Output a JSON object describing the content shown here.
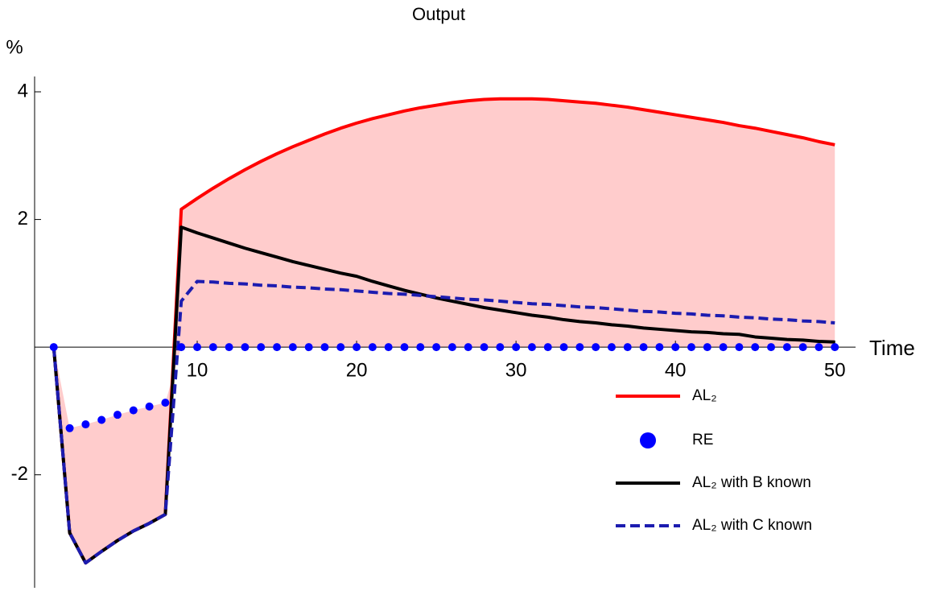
{
  "chart_data": {
    "type": "line",
    "title": "Output",
    "ylabel": "%",
    "xlabel": "Time",
    "x": [
      1,
      2,
      3,
      4,
      5,
      6,
      7,
      8,
      9,
      10,
      11,
      12,
      13,
      14,
      15,
      16,
      17,
      18,
      19,
      20,
      21,
      22,
      23,
      24,
      25,
      26,
      27,
      28,
      29,
      30,
      31,
      32,
      33,
      34,
      35,
      36,
      37,
      38,
      39,
      40,
      41,
      42,
      43,
      44,
      45,
      46,
      47,
      48,
      49,
      50
    ],
    "xlim": [
      -0.2,
      51.3
    ],
    "xticks": [
      10,
      20,
      30,
      40,
      50
    ],
    "ylim": [
      -3.77,
      4.24
    ],
    "yticks": [
      -2,
      2,
      4
    ],
    "series": [
      {
        "name": "AL₂",
        "color": "#ff0000",
        "style": "solid",
        "fill": "#ffcccc",
        "values": [
          0,
          -2.91,
          -3.38,
          -3.2,
          -3.03,
          -2.88,
          -2.76,
          -2.62,
          2.16,
          2.33,
          2.49,
          2.64,
          2.78,
          2.91,
          3.03,
          3.14,
          3.24,
          3.34,
          3.43,
          3.51,
          3.58,
          3.64,
          3.7,
          3.75,
          3.79,
          3.83,
          3.86,
          3.88,
          3.89,
          3.89,
          3.89,
          3.88,
          3.86,
          3.84,
          3.82,
          3.79,
          3.76,
          3.72,
          3.68,
          3.64,
          3.6,
          3.56,
          3.52,
          3.47,
          3.43,
          3.38,
          3.33,
          3.28,
          3.22,
          3.17
        ]
      },
      {
        "name": "RE",
        "color": "#0000ff",
        "style": "dots",
        "values": [
          0,
          -1.27,
          -1.21,
          -1.14,
          -1.06,
          -0.99,
          -0.93,
          -0.87,
          0,
          0,
          0,
          0,
          0,
          0,
          0,
          0,
          0,
          0,
          0,
          0,
          0,
          0,
          0,
          0,
          0,
          0,
          0,
          0,
          0,
          0,
          0,
          0,
          0,
          0,
          0,
          0,
          0,
          0,
          0,
          0,
          0,
          0,
          0,
          0,
          0,
          0,
          0,
          0,
          0,
          0
        ]
      },
      {
        "name": "AL₂ with B known",
        "color": "#000000",
        "style": "solid",
        "values": [
          0,
          -2.91,
          -3.38,
          -3.2,
          -3.03,
          -2.88,
          -2.76,
          -2.62,
          1.88,
          1.79,
          1.71,
          1.63,
          1.55,
          1.48,
          1.41,
          1.34,
          1.28,
          1.22,
          1.16,
          1.11,
          1.03,
          0.96,
          0.89,
          0.83,
          0.77,
          0.72,
          0.67,
          0.62,
          0.58,
          0.54,
          0.5,
          0.47,
          0.43,
          0.4,
          0.38,
          0.35,
          0.33,
          0.3,
          0.28,
          0.26,
          0.24,
          0.23,
          0.21,
          0.2,
          0.16,
          0.14,
          0.12,
          0.11,
          0.09,
          0.08
        ]
      },
      {
        "name": "AL₂ with C known",
        "color": "#1c1cb0",
        "style": "dashed",
        "values": [
          0,
          -2.91,
          -3.38,
          -3.2,
          -3.03,
          -2.88,
          -2.76,
          -2.62,
          0.72,
          1.03,
          1.02,
          1.0,
          0.99,
          0.97,
          0.96,
          0.94,
          0.93,
          0.91,
          0.9,
          0.88,
          0.86,
          0.84,
          0.83,
          0.81,
          0.79,
          0.77,
          0.75,
          0.74,
          0.72,
          0.7,
          0.68,
          0.67,
          0.65,
          0.63,
          0.62,
          0.6,
          0.58,
          0.56,
          0.55,
          0.53,
          0.52,
          0.5,
          0.49,
          0.47,
          0.46,
          0.44,
          0.43,
          0.41,
          0.4,
          0.38
        ]
      }
    ]
  }
}
